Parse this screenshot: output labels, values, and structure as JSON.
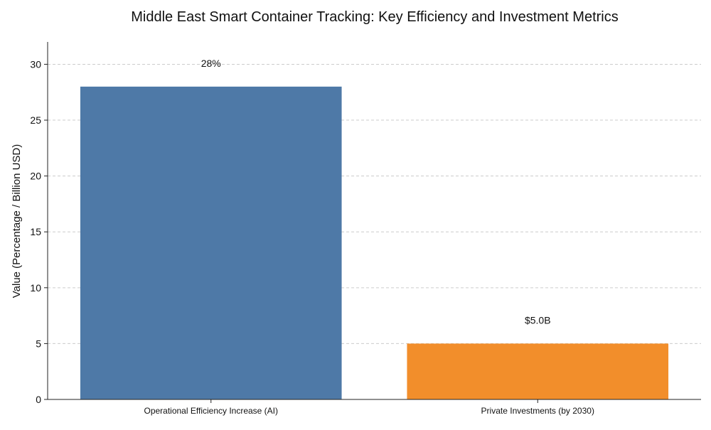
{
  "chart_data": {
    "type": "bar",
    "title": "Middle East Smart Container Tracking: Key Efficiency and Investment Metrics",
    "xlabel": "",
    "ylabel": "Value (Percentage / Billion USD)",
    "categories": [
      "Operational Efficiency Increase (AI)",
      "Private Investments (by 2030)"
    ],
    "values": [
      28,
      5
    ],
    "data_labels": [
      "28%",
      "$5.0B"
    ],
    "colors": [
      "#4e79a7",
      "#f28e2b"
    ],
    "ylim": [
      0,
      32
    ],
    "yticks": [
      0,
      5,
      10,
      15,
      20,
      25,
      30
    ],
    "grid": "y-dashed",
    "legend": "none"
  }
}
